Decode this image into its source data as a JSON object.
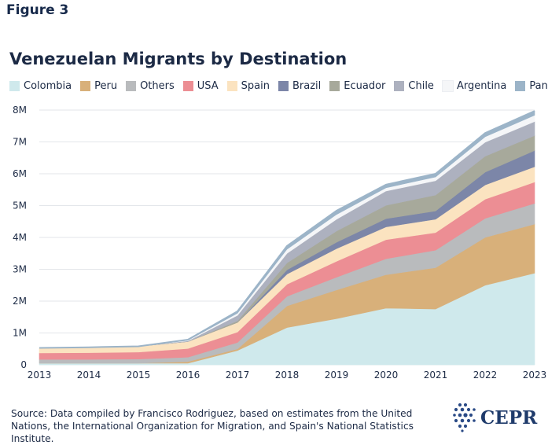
{
  "figure_label": "Figure 3",
  "source_text": "Source: Data compiled by Francisco Rodriguez, based on estimates from the United Nations, the International Organization for Migration, and Spain's National Statistics Institute.",
  "logo": {
    "text": "CEPR",
    "icon": "cepr-dot-mark-icon"
  },
  "chart_data": {
    "type": "area",
    "stacked": true,
    "title": "Venezuelan Migrants by Destination",
    "xlabel": "",
    "ylabel": "",
    "x": [
      "2013",
      "2014",
      "2015",
      "2016",
      "2017",
      "2018",
      "2019",
      "2020",
      "2021",
      "2022",
      "2023"
    ],
    "y_ticks": [
      "0",
      "1M",
      "2M",
      "3M",
      "4M",
      "5M",
      "6M",
      "7M",
      "8M"
    ],
    "ylim": [
      0,
      8000000
    ],
    "grid": true,
    "legend_position": "top",
    "series": [
      {
        "name": "Colombia",
        "color": "#cfe9ec",
        "values": [
          0.05,
          0.05,
          0.05,
          0.05,
          0.45,
          1.17,
          1.45,
          1.78,
          1.75,
          2.5,
          2.88
        ]
      },
      {
        "name": "Peru",
        "color": "#d8b07a",
        "values": [
          0.0,
          0.0,
          0.0,
          0.05,
          0.05,
          0.68,
          0.9,
          1.05,
          1.3,
          1.5,
          1.54
        ]
      },
      {
        "name": "Others",
        "color": "#b9bbbd",
        "values": [
          0.12,
          0.12,
          0.13,
          0.14,
          0.2,
          0.3,
          0.4,
          0.5,
          0.55,
          0.6,
          0.65
        ]
      },
      {
        "name": "USA",
        "color": "#ec8e94",
        "values": [
          0.2,
          0.21,
          0.22,
          0.27,
          0.33,
          0.38,
          0.5,
          0.6,
          0.55,
          0.6,
          0.67
        ]
      },
      {
        "name": "Spain",
        "color": "#fbe3c0",
        "values": [
          0.16,
          0.17,
          0.18,
          0.22,
          0.3,
          0.32,
          0.4,
          0.4,
          0.42,
          0.45,
          0.48
        ]
      },
      {
        "name": "Brazil",
        "color": "#7c86a8",
        "values": [
          0.0,
          0.0,
          0.0,
          0.0,
          0.0,
          0.13,
          0.2,
          0.26,
          0.26,
          0.4,
          0.51
        ]
      },
      {
        "name": "Ecuador",
        "color": "#a7a99b",
        "values": [
          0.0,
          0.0,
          0.0,
          0.0,
          0.05,
          0.22,
          0.35,
          0.42,
          0.5,
          0.5,
          0.47
        ]
      },
      {
        "name": "Chile",
        "color": "#adb1bf",
        "values": [
          0.0,
          0.0,
          0.0,
          0.02,
          0.17,
          0.3,
          0.37,
          0.45,
          0.45,
          0.44,
          0.44
        ]
      },
      {
        "name": "Argentina",
        "color": "#f5f6f8",
        "values": [
          0.0,
          0.0,
          0.0,
          0.02,
          0.07,
          0.13,
          0.15,
          0.1,
          0.12,
          0.17,
          0.2
        ]
      },
      {
        "name": "Panama",
        "color": "#9cb4c8",
        "values": [
          0.0,
          0.0,
          0.0,
          0.02,
          0.06,
          0.1,
          0.12,
          0.1,
          0.1,
          0.12,
          0.13
        ]
      }
    ],
    "value_unit": "millions"
  }
}
